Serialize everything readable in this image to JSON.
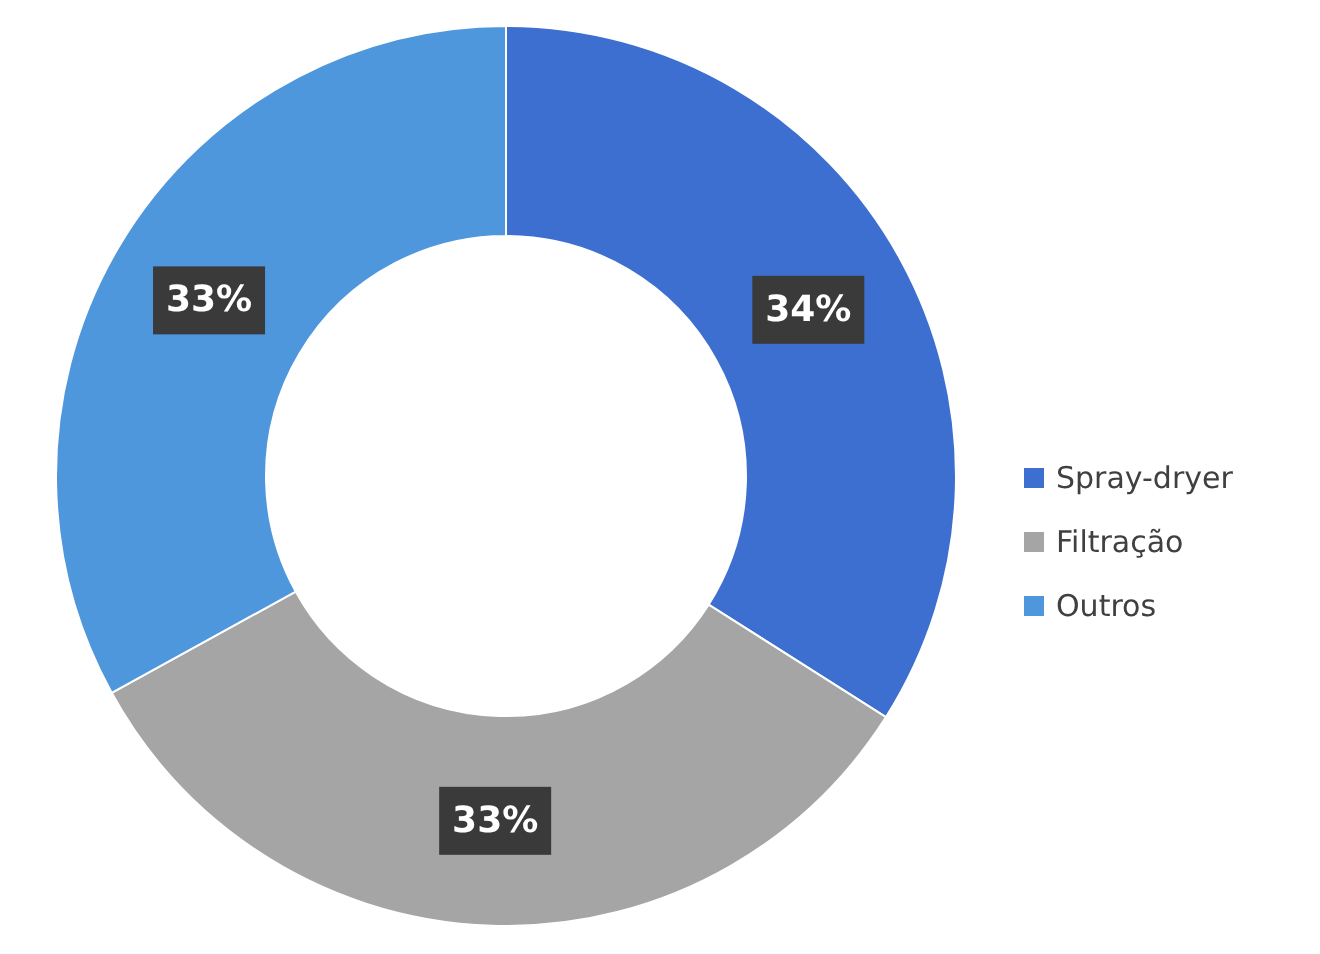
{
  "chart_data": {
    "type": "donut",
    "categories": [
      "Spray-dryer",
      "Filtração",
      "Outros"
    ],
    "values": [
      34,
      33,
      33
    ],
    "colors": [
      "#3c6fcf",
      "#a5a5a5",
      "#4e97dd"
    ],
    "value_labels": [
      "34%",
      "33%",
      "33%"
    ],
    "legend": "right"
  }
}
